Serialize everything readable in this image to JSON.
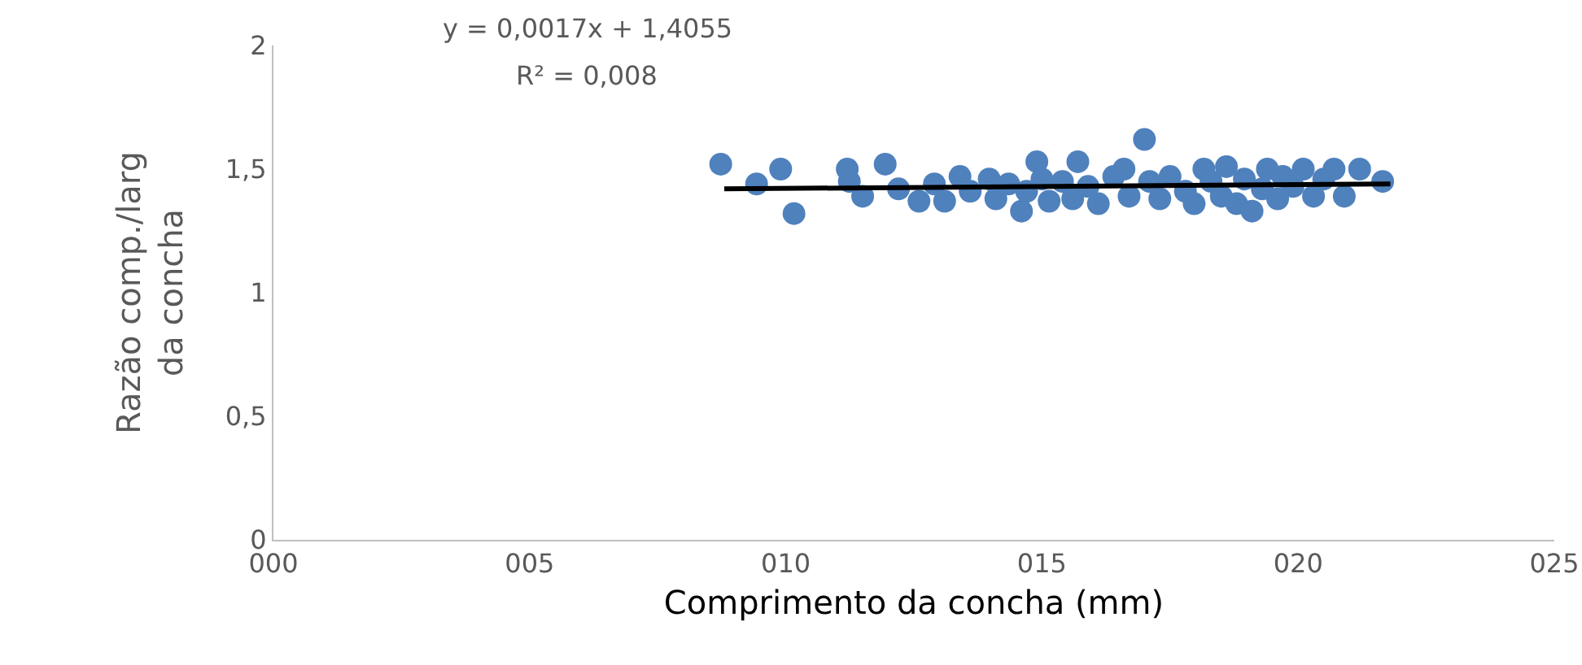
{
  "chart_data": {
    "type": "scatter",
    "xlabel": "Comprimento da concha (mm)",
    "ylabel": "Razão comp./larg\nda concha",
    "annotations": [
      "y = 0,0017x + 1,4055",
      "R² = 0,008"
    ],
    "x": [
      8.73,
      9.43,
      9.9,
      10.16,
      11.2,
      11.24,
      11.5,
      11.94,
      12.2,
      12.6,
      12.9,
      13.1,
      13.4,
      13.6,
      13.97,
      14.1,
      14.35,
      14.6,
      14.7,
      14.9,
      15.0,
      15.14,
      15.4,
      15.6,
      15.7,
      15.9,
      16.1,
      16.4,
      16.6,
      16.7,
      17.0,
      17.1,
      17.3,
      17.5,
      17.8,
      17.97,
      18.16,
      18.3,
      18.5,
      18.6,
      18.8,
      18.95,
      19.1,
      19.3,
      19.4,
      19.6,
      19.7,
      19.9,
      20.1,
      20.3,
      20.5,
      20.7,
      20.9,
      21.2,
      21.65
    ],
    "series": [
      {
        "color": "#4f81bd",
        "marker": "circle",
        "values": [
          1.52,
          1.44,
          1.5,
          1.32,
          1.5,
          1.45,
          1.39,
          1.52,
          1.42,
          1.37,
          1.44,
          1.37,
          1.47,
          1.41,
          1.46,
          1.38,
          1.44,
          1.33,
          1.41,
          1.53,
          1.46,
          1.37,
          1.45,
          1.38,
          1.53,
          1.43,
          1.36,
          1.47,
          1.5,
          1.39,
          1.62,
          1.45,
          1.38,
          1.47,
          1.41,
          1.36,
          1.5,
          1.45,
          1.39,
          1.51,
          1.36,
          1.46,
          1.33,
          1.42,
          1.5,
          1.38,
          1.47,
          1.43,
          1.5,
          1.39,
          1.46,
          1.5,
          1.39,
          1.5,
          1.45
        ]
      },
      {
        "type": "line",
        "color": "#000000",
        "marker": "none",
        "x": [
          8.8,
          21.8
        ],
        "values": [
          1.42,
          1.44
        ]
      }
    ],
    "xlim": [
      0,
      25
    ],
    "xticks": [
      {
        "value": 0,
        "label": "000"
      },
      {
        "value": 5,
        "label": "005"
      },
      {
        "value": 10,
        "label": "010"
      },
      {
        "value": 15,
        "label": "015"
      },
      {
        "value": 20,
        "label": "020"
      },
      {
        "value": 25,
        "label": "025"
      }
    ],
    "ylim": [
      0,
      2
    ],
    "yticks": [
      0,
      {
        "value": 0.5,
        "label": "0,5"
      },
      1,
      {
        "value": 1.5,
        "label": "1,5"
      },
      2
    ],
    "grid": false,
    "legend": false
  }
}
